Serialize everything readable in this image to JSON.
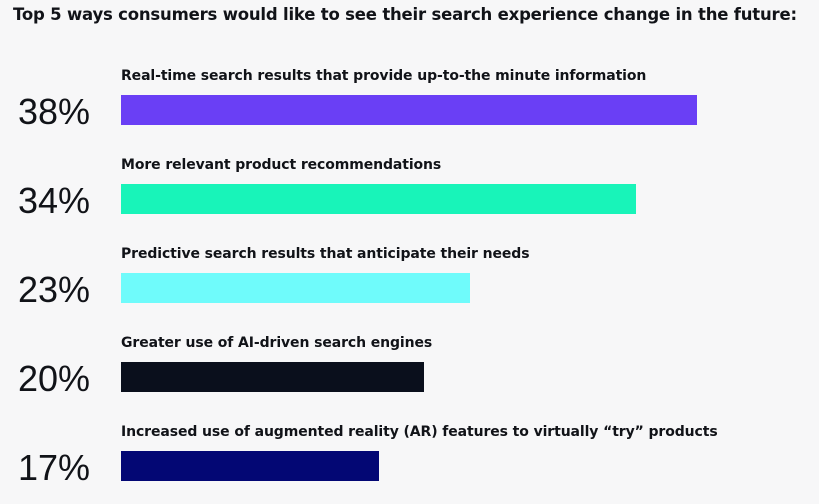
{
  "chart_data": {
    "type": "bar",
    "title": "Top 5 ways consumers would like to see their search experience change in the future:",
    "xlabel": "",
    "ylabel": "",
    "xlim": [
      0,
      38
    ],
    "categories": [
      "Real-time search results that provide up-to-the minute information",
      "More relevant product recommendations",
      "Predictive search results that anticipate their needs",
      "Greater use of AI-driven search engines",
      "Increased use of augmented reality (AR) features to virtually “try” products"
    ],
    "values": [
      38,
      34,
      23,
      20,
      17
    ],
    "value_labels": [
      "38%",
      "34%",
      "23%",
      "20%",
      "17%"
    ],
    "colors": [
      "#6a3ff5",
      "#18f4b9",
      "#6ffbfb",
      "#0a0f1c",
      "#030774"
    ],
    "grid": false,
    "legend": "none"
  }
}
